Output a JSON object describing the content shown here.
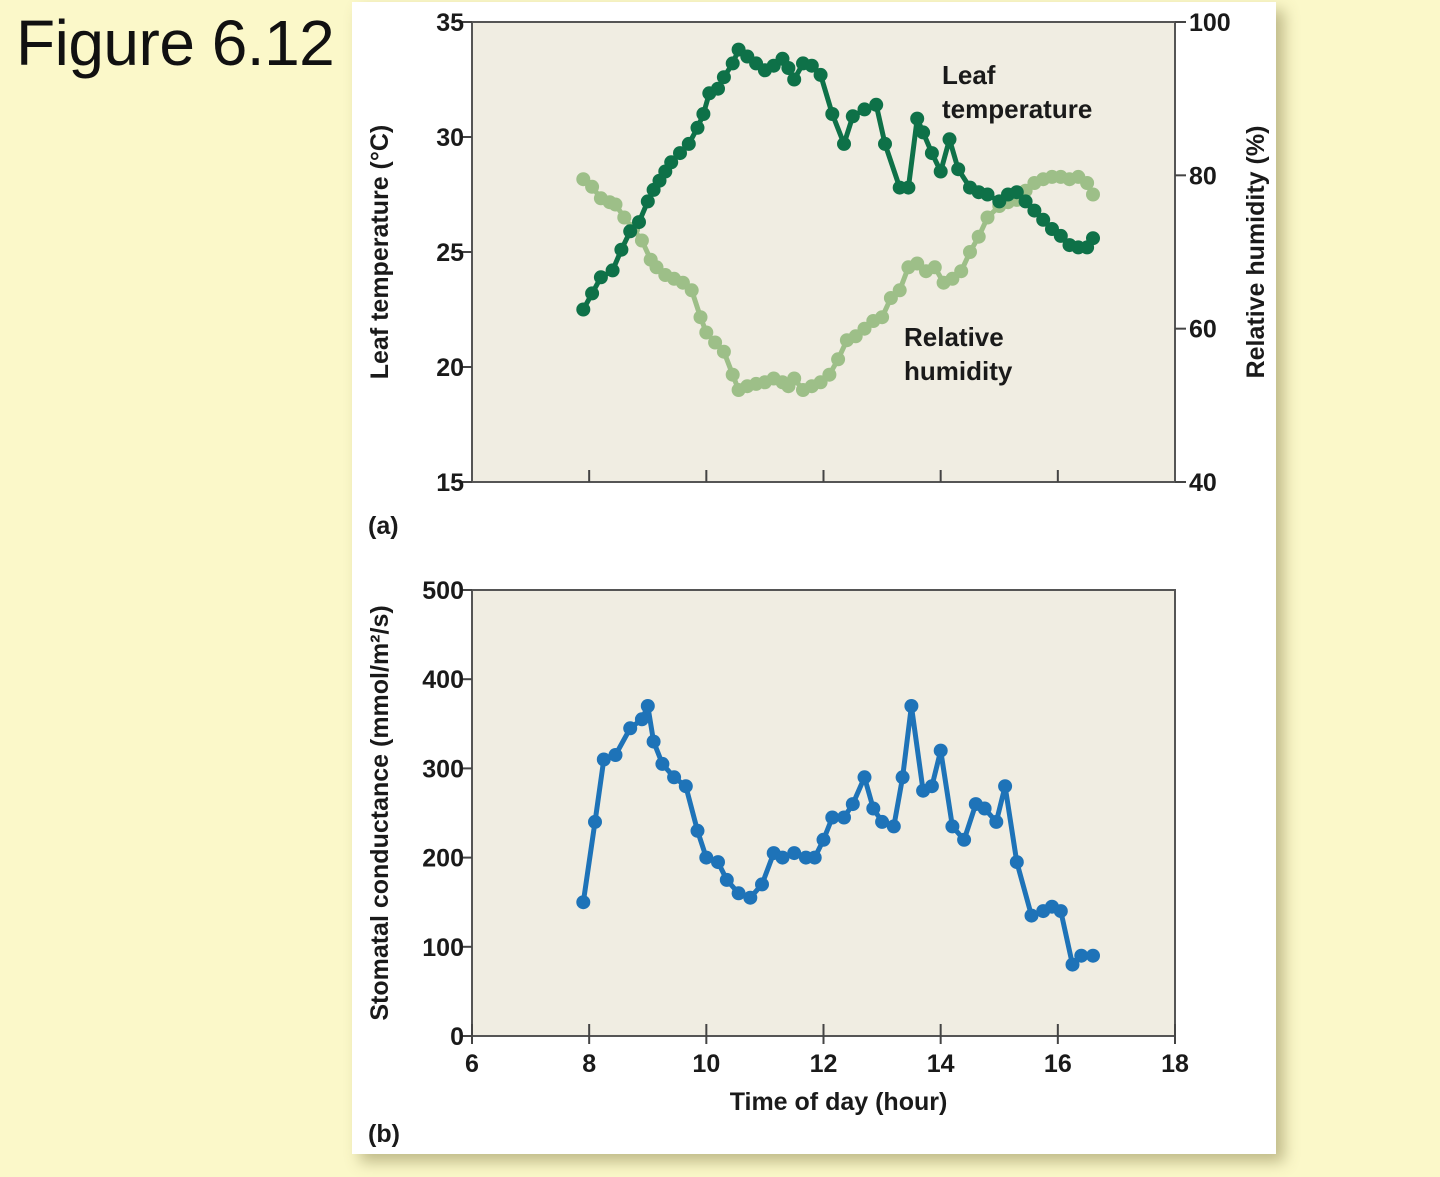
{
  "slide": {
    "title": "Figure 6.12"
  },
  "colors": {
    "background": "#fbf8c9",
    "plot_bg": "#f0ede2",
    "leaf_temperature": "#0e7148",
    "relative_humidity": "#9dbf88",
    "stomatal_conductance": "#1e73b8"
  },
  "chart_data": [
    {
      "panel": "(a)",
      "type": "line",
      "xlim": [
        6,
        18
      ],
      "x_ticks": [
        8,
        10,
        12,
        14,
        16
      ],
      "ylabel": "Leaf temperature (°C)",
      "ylim": [
        15,
        35
      ],
      "y_ticks": [
        15,
        20,
        25,
        30,
        35
      ],
      "y2label": "Relative humidity (%)",
      "y2lim": [
        40,
        100
      ],
      "y2_ticks": [
        40,
        60,
        80,
        100
      ],
      "grid": false,
      "series": [
        {
          "name_lines": [
            "Leaf",
            "temperature"
          ],
          "axis": "left",
          "x": [
            7.9,
            8.05,
            8.2,
            8.4,
            8.55,
            8.7,
            8.85,
            9.0,
            9.1,
            9.2,
            9.3,
            9.4,
            9.55,
            9.7,
            9.85,
            9.95,
            10.05,
            10.2,
            10.3,
            10.45,
            10.55,
            10.7,
            10.85,
            11.0,
            11.15,
            11.3,
            11.4,
            11.5,
            11.65,
            11.8,
            11.95,
            12.15,
            12.35,
            12.5,
            12.7,
            12.9,
            13.05,
            13.3,
            13.45,
            13.6,
            13.7,
            13.85,
            14.0,
            14.15,
            14.3,
            14.5,
            14.65,
            14.8,
            15.0,
            15.15,
            15.3,
            15.45,
            15.6,
            15.75,
            15.9,
            16.05,
            16.2,
            16.35,
            16.5,
            16.6
          ],
          "y": [
            22.5,
            23.2,
            23.9,
            24.2,
            25.1,
            25.9,
            26.3,
            27.2,
            27.7,
            28.1,
            28.5,
            28.9,
            29.3,
            29.7,
            30.4,
            31.0,
            31.9,
            32.1,
            32.6,
            33.2,
            33.8,
            33.5,
            33.2,
            32.9,
            33.1,
            33.4,
            33.0,
            32.5,
            33.2,
            33.1,
            32.7,
            31.0,
            29.7,
            30.9,
            31.2,
            31.4,
            29.7,
            27.8,
            27.8,
            30.8,
            30.2,
            29.3,
            28.5,
            29.9,
            28.6,
            27.8,
            27.6,
            27.5,
            27.2,
            27.5,
            27.6,
            27.2,
            26.8,
            26.4,
            26.0,
            25.7,
            25.3,
            25.2,
            25.2,
            25.6
          ]
        },
        {
          "name_lines": [
            "Relative",
            "humidity"
          ],
          "axis": "right",
          "x": [
            7.9,
            8.05,
            8.2,
            8.35,
            8.45,
            8.6,
            8.75,
            8.9,
            9.05,
            9.15,
            9.3,
            9.45,
            9.6,
            9.75,
            9.9,
            10.0,
            10.15,
            10.3,
            10.45,
            10.55,
            10.7,
            10.85,
            11.0,
            11.15,
            11.3,
            11.4,
            11.5,
            11.65,
            11.8,
            11.95,
            12.1,
            12.25,
            12.4,
            12.55,
            12.7,
            12.85,
            13.0,
            13.15,
            13.3,
            13.45,
            13.6,
            13.75,
            13.9,
            14.05,
            14.2,
            14.35,
            14.5,
            14.65,
            14.8,
            15.0,
            15.15,
            15.3,
            15.45,
            15.6,
            15.75,
            15.9,
            16.05,
            16.2,
            16.35,
            16.5,
            16.6
          ],
          "y": [
            79.5,
            78.5,
            77.0,
            76.5,
            76.2,
            74.5,
            73.0,
            71.5,
            69.0,
            68.0,
            67.0,
            66.5,
            66.0,
            65.0,
            61.5,
            59.5,
            58.2,
            57.0,
            54.0,
            52.0,
            52.5,
            52.8,
            53.0,
            53.5,
            53.0,
            52.5,
            53.5,
            52.0,
            52.5,
            53.0,
            54.0,
            56.0,
            58.5,
            59.0,
            60.0,
            61.0,
            61.5,
            64.0,
            65.0,
            68.0,
            68.5,
            67.5,
            68.0,
            66.0,
            66.5,
            67.5,
            70.0,
            72.0,
            74.5,
            76.0,
            76.5,
            76.8,
            78.0,
            79.0,
            79.5,
            79.8,
            79.8,
            79.5,
            79.8,
            79.0,
            77.5
          ]
        }
      ]
    },
    {
      "panel": "(b)",
      "type": "line",
      "xlabel": "Time of day (hour)",
      "xlim": [
        6,
        18
      ],
      "x_ticks": [
        6,
        8,
        10,
        12,
        14,
        16,
        18
      ],
      "ylabel": "Stomatal conductance (mmol/m²/s)",
      "ylim": [
        0,
        500
      ],
      "y_ticks": [
        0,
        100,
        200,
        300,
        400,
        500
      ],
      "grid": false,
      "series": [
        {
          "axis": "left",
          "x": [
            7.9,
            8.1,
            8.25,
            8.45,
            8.7,
            8.9,
            9.0,
            9.1,
            9.25,
            9.45,
            9.65,
            9.85,
            10.0,
            10.2,
            10.35,
            10.55,
            10.75,
            10.95,
            11.15,
            11.3,
            11.5,
            11.7,
            11.85,
            12.0,
            12.15,
            12.35,
            12.5,
            12.7,
            12.85,
            13.0,
            13.2,
            13.35,
            13.5,
            13.7,
            13.85,
            14.0,
            14.2,
            14.4,
            14.6,
            14.75,
            14.95,
            15.1,
            15.3,
            15.55,
            15.75,
            15.9,
            16.05,
            16.25,
            16.4,
            16.6
          ],
          "y": [
            150,
            240,
            310,
            315,
            345,
            355,
            370,
            330,
            305,
            290,
            280,
            230,
            200,
            195,
            175,
            160,
            155,
            170,
            205,
            200,
            205,
            200,
            200,
            220,
            245,
            245,
            260,
            290,
            255,
            240,
            235,
            290,
            370,
            275,
            280,
            320,
            235,
            220,
            260,
            255,
            240,
            280,
            195,
            135,
            140,
            145,
            140,
            80,
            90,
            90
          ]
        }
      ]
    }
  ]
}
